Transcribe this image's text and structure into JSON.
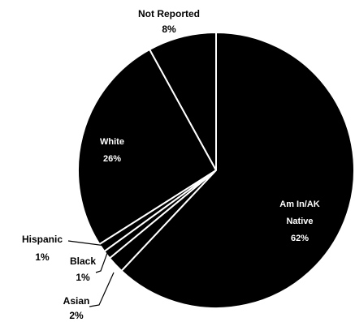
{
  "chart_data": {
    "type": "pie",
    "title": "",
    "slices": [
      {
        "name": "Not Reported",
        "value": 8,
        "label": "8%",
        "display_lines": [
          "Not Reported"
        ]
      },
      {
        "name": "White",
        "value": 26,
        "label": "26%",
        "display_lines": [
          "White"
        ]
      },
      {
        "name": "Hispanic",
        "value": 1,
        "label": "1%",
        "display_lines": [
          "Hispanic"
        ]
      },
      {
        "name": "Black",
        "value": 1,
        "label": "1%",
        "display_lines": [
          "Black"
        ]
      },
      {
        "name": "Asian",
        "value": 2,
        "label": "2%",
        "display_lines": [
          "Asian"
        ]
      },
      {
        "name": "Am In/AK Native",
        "value": 62,
        "label": "62%",
        "display_lines": [
          "Am In/AK",
          "Native"
        ]
      }
    ],
    "colors": {
      "slice": "#000000",
      "separator": "#ffffff",
      "background": "#ffffff"
    },
    "legend": "none"
  }
}
